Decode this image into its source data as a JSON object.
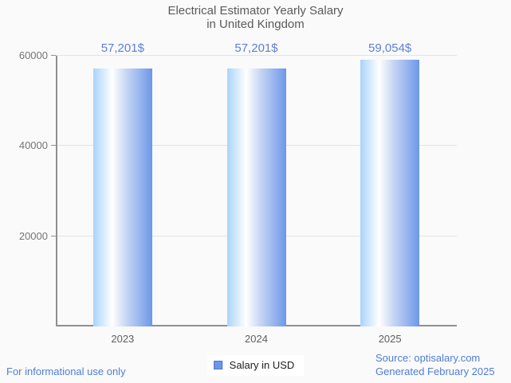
{
  "chart_data": {
    "type": "bar",
    "title": "Electrical Estimator Yearly Salary in United Kingdom",
    "title_lines": [
      "Electrical Estimator Yearly Salary",
      "in United Kingdom"
    ],
    "categories": [
      "2023",
      "2024",
      "2025"
    ],
    "series": [
      {
        "name": "Salary in USD",
        "values": [
          57201,
          57201,
          59054
        ]
      }
    ],
    "value_labels": [
      "57,201$",
      "57,201$",
      "59,054$"
    ],
    "xlabel": "",
    "ylabel": "",
    "ylim": [
      0,
      60000
    ],
    "yticks": [
      20000,
      40000,
      60000
    ],
    "ytick_labels": [
      "20000",
      "40000",
      "60000"
    ],
    "grid": true,
    "legend_position": "bottom"
  },
  "legend": {
    "label": "Salary in USD"
  },
  "footer": {
    "disclaimer": "For informational use only",
    "source": "Source: optisalary.com",
    "generated": "Generated February 2025"
  },
  "colors": {
    "background": "#fafafa",
    "bar_gradient_left": "#a9d4fb",
    "bar_gradient_mid": "#ffffff",
    "bar_gradient_right": "#6d97e8",
    "value_label": "#5c80d4",
    "footer_link": "#4f7ed6",
    "axis_line": "#8f8f8f",
    "gridline": "#e3e3e3",
    "title_text": "#5a5a5a",
    "ytick_text": "#757575",
    "xtick_text": "#5e5e5e",
    "legend_marker_fill": "#6d96e6",
    "legend_marker_border": "#4c77c7"
  }
}
